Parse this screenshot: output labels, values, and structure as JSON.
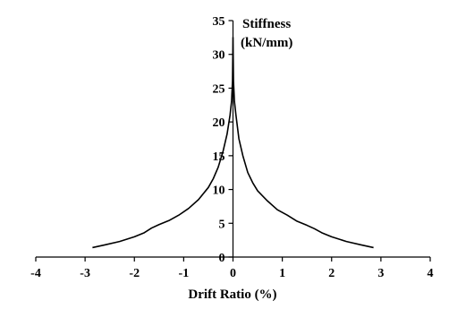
{
  "chart_data": {
    "type": "line",
    "title": "",
    "xlabel": "Drift Ratio (%)",
    "ylabel_lines": [
      "Stiffness",
      "(kN/mm)"
    ],
    "xlim": [
      -4,
      4
    ],
    "ylim": [
      0,
      35
    ],
    "x_ticks": [
      -4,
      -3,
      -2,
      -1,
      0,
      1,
      2,
      3,
      4
    ],
    "y_ticks": [
      0,
      5,
      10,
      15,
      20,
      25,
      30,
      35
    ],
    "grid": false,
    "legend": "none",
    "line_color": "#000000",
    "series": [
      {
        "x": [
          -2.85,
          -2.6,
          -2.3,
          -2.0,
          -1.8,
          -1.65,
          -1.5,
          -1.3,
          -1.1,
          -0.9,
          -0.7,
          -0.5,
          -0.4,
          -0.3,
          -0.2,
          -0.12,
          -0.06,
          -0.03,
          -0.01,
          0.0,
          0.01,
          0.03,
          0.06,
          0.12,
          0.2,
          0.3,
          0.4,
          0.5,
          0.7,
          0.9,
          1.1,
          1.3,
          1.5,
          1.65,
          1.8,
          2.0,
          2.3,
          2.6,
          2.85
        ],
        "y": [
          1.4,
          1.8,
          2.3,
          3.0,
          3.6,
          4.3,
          4.8,
          5.4,
          6.2,
          7.2,
          8.5,
          10.3,
          11.6,
          13.3,
          15.7,
          18.2,
          21.0,
          23.0,
          26.0,
          32.5,
          26.0,
          23.0,
          21.0,
          17.5,
          15.0,
          12.5,
          11.0,
          9.8,
          8.3,
          7.0,
          6.2,
          5.3,
          4.7,
          4.2,
          3.6,
          3.0,
          2.3,
          1.8,
          1.4
        ]
      }
    ]
  }
}
